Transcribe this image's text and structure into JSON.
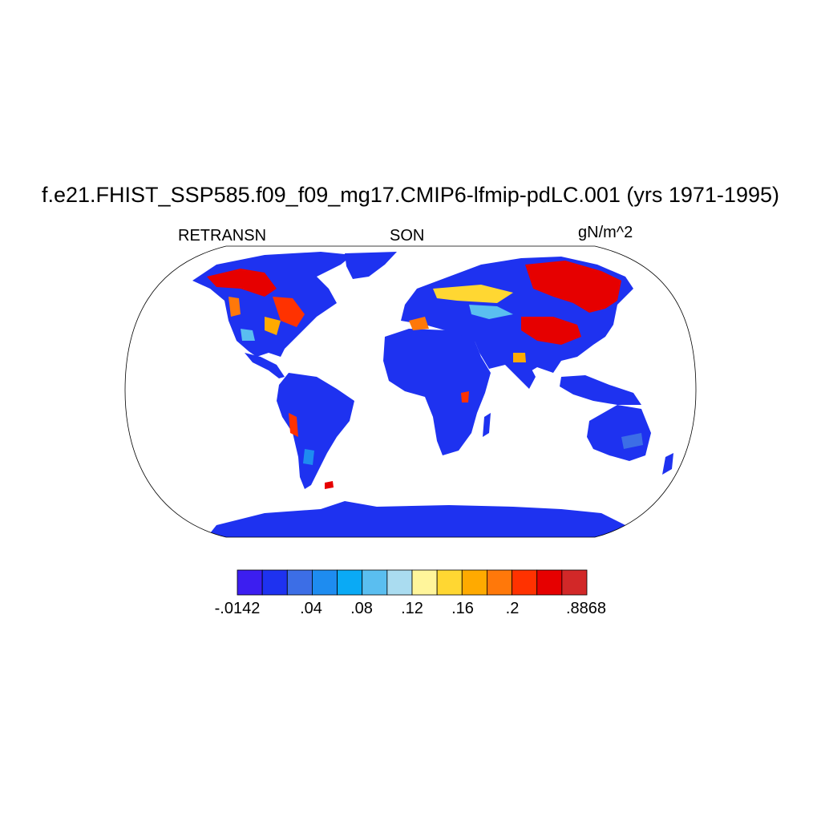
{
  "title": "f.e21.FHIST_SSP585.f09_f09_mg17.CMIP6-lfmip-pdLC.001 (yrs 1971-1995)",
  "left_label": "RETRANSN",
  "center_label": "SON",
  "right_label": "gN/m^2",
  "colors": {
    "ocean": "#ffffff",
    "land_base": "#1e32f0",
    "outline": "#000000"
  },
  "colorbar": {
    "colors": [
      "#3c1ef0",
      "#1e32f0",
      "#3c6ee6",
      "#1e8cf0",
      "#0aaaf5",
      "#5abef0",
      "#aadcf0",
      "#fff59b",
      "#ffd732",
      "#ffaa00",
      "#ff780a",
      "#ff3200",
      "#e60000",
      "#d22828"
    ],
    "labels": [
      {
        "index": 0,
        "text": "-.0142"
      },
      {
        "index": 2,
        "text": ".04"
      },
      {
        "index": 3,
        "text": ".08"
      },
      {
        "index": 4,
        "text": ".12"
      },
      {
        "index": 5,
        "text": ".16"
      },
      {
        "index": 6,
        "text": ".2"
      },
      {
        "index": 7,
        "text": ".8868"
      }
    ]
  }
}
